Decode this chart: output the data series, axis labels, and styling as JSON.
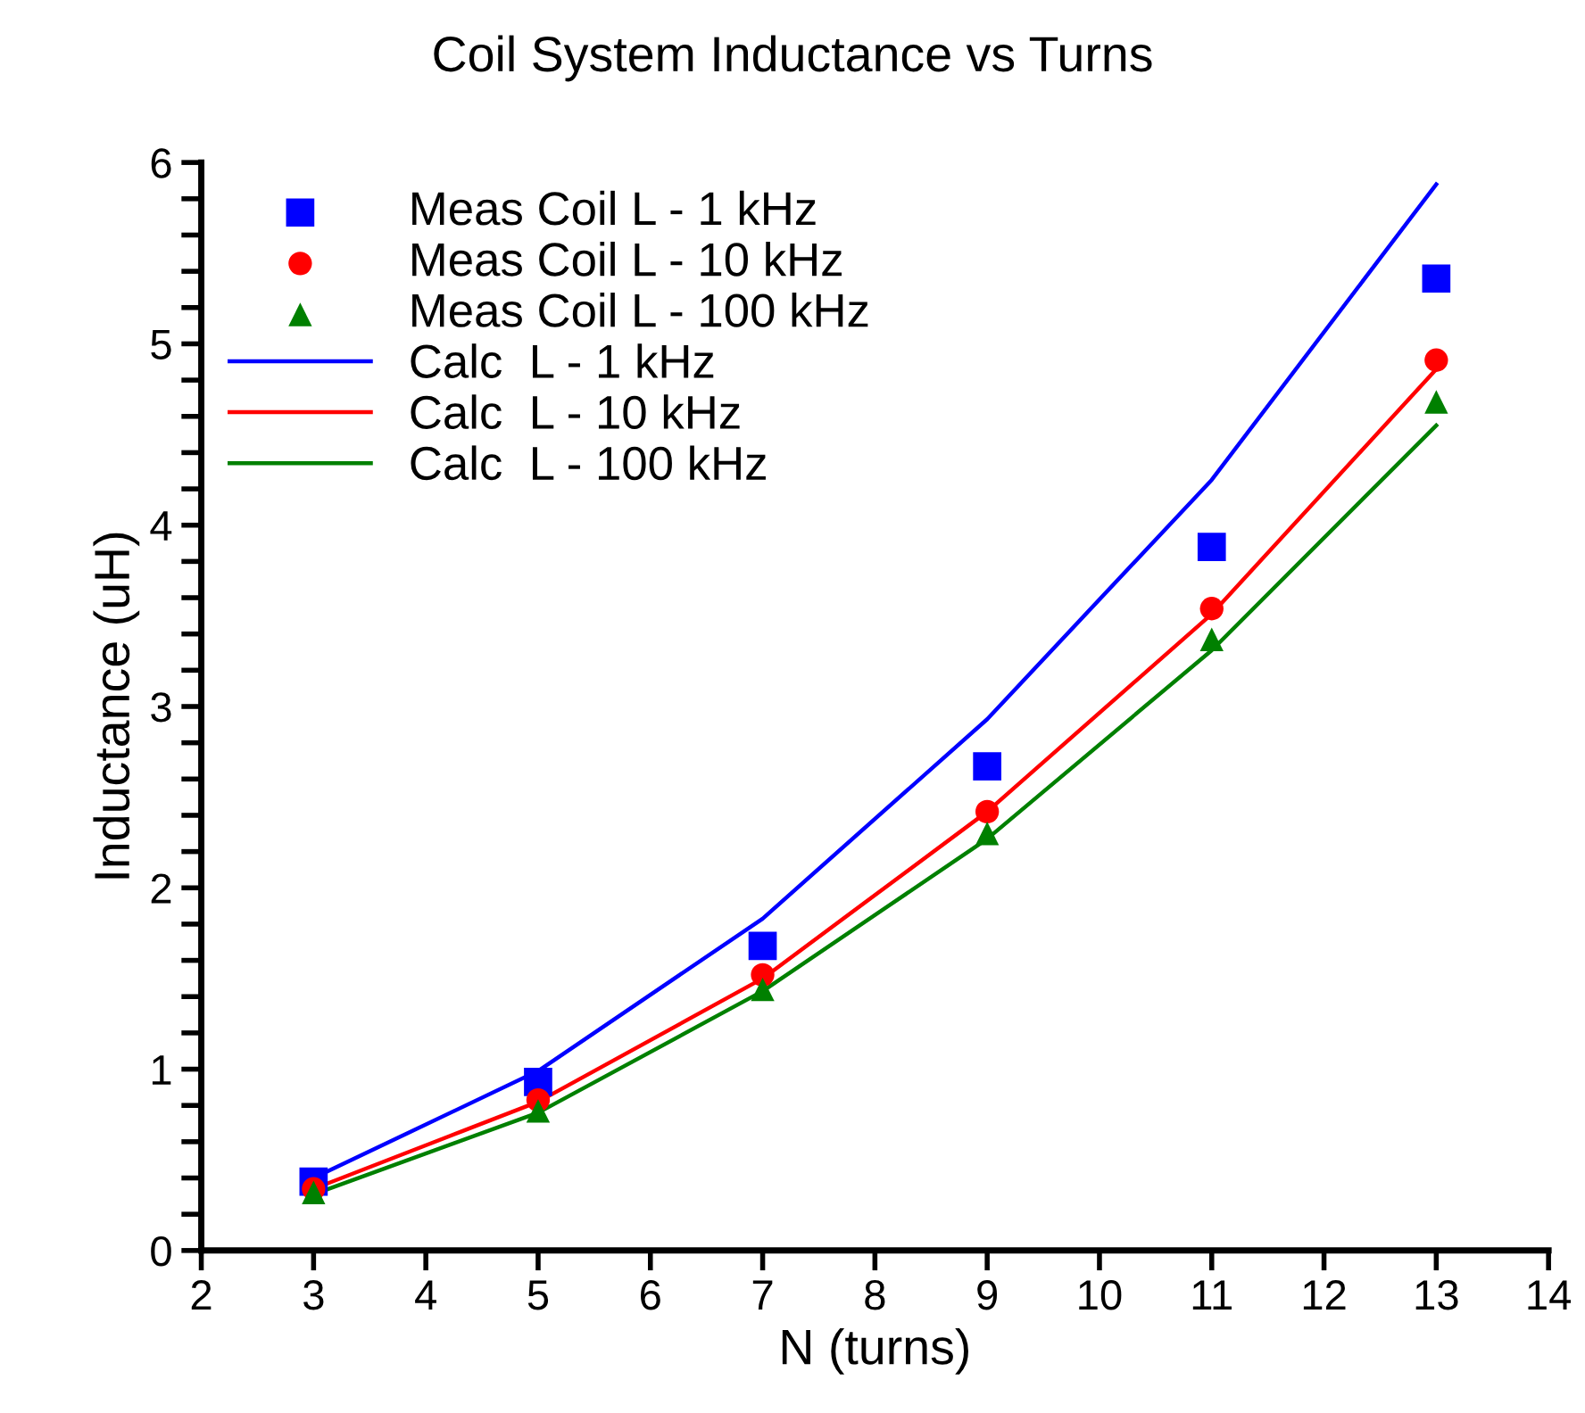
{
  "chart_data": {
    "type": "scatter",
    "title": "Coil System Inductance vs Turns",
    "xlabel": "N (turns)",
    "ylabel": "Inductance (uH)",
    "x": [
      3,
      5,
      7,
      9,
      11,
      13
    ],
    "series": [
      {
        "name": "Meas Coil L - 1 kHz",
        "marker": "square",
        "color": "#0000ff",
        "values": [
          0.38,
          0.93,
          1.68,
          2.67,
          3.88,
          5.36
        ]
      },
      {
        "name": "Meas Coil L - 10 kHz",
        "marker": "circle",
        "color": "#ff0000",
        "values": [
          0.34,
          0.83,
          1.52,
          2.42,
          3.54,
          4.91
        ]
      },
      {
        "name": "Meas Coil L - 100 kHz",
        "marker": "triangle",
        "color": "#008000",
        "values": [
          0.32,
          0.77,
          1.44,
          2.3,
          3.37,
          4.68
        ]
      },
      {
        "name": "Calc  L - 1 kHz",
        "type": "line",
        "marker": "none",
        "color": "#0000ff",
        "values": [
          0.4,
          0.99,
          1.83,
          2.93,
          4.25,
          5.88
        ]
      },
      {
        "name": "Calc  L - 10 kHz",
        "type": "line",
        "marker": "none",
        "color": "#ff0000",
        "values": [
          0.34,
          0.82,
          1.5,
          2.42,
          3.51,
          4.86
        ]
      },
      {
        "name": "Calc  L - 100 kHz",
        "type": "line",
        "marker": "none",
        "color": "#008000",
        "values": [
          0.31,
          0.76,
          1.43,
          2.27,
          3.31,
          4.55
        ]
      }
    ],
    "xlim": [
      2,
      14
    ],
    "xticks": [
      2,
      3,
      4,
      5,
      6,
      7,
      8,
      9,
      10,
      11,
      12,
      13,
      14
    ],
    "ylim": [
      0,
      6
    ],
    "yticks": [
      0,
      {
        "value": 0.2,
        "label": null
      },
      {
        "value": 0.4,
        "label": null
      },
      {
        "value": 0.6,
        "label": null
      },
      {
        "value": 0.8,
        "label": null
      },
      1,
      {
        "value": 1.2,
        "label": null
      },
      {
        "value": 1.4,
        "label": null
      },
      {
        "value": 1.6,
        "label": null
      },
      {
        "value": 1.8,
        "label": null
      },
      2,
      {
        "value": 2.2,
        "label": null
      },
      {
        "value": 2.4,
        "label": null
      },
      {
        "value": 2.6,
        "label": null
      },
      {
        "value": 2.8,
        "label": null
      },
      3,
      {
        "value": 3.2,
        "label": null
      },
      {
        "value": 3.4,
        "label": null
      },
      {
        "value": 3.6,
        "label": null
      },
      {
        "value": 3.8,
        "label": null
      },
      4,
      {
        "value": 4.2,
        "label": null
      },
      {
        "value": 4.4,
        "label": null
      },
      {
        "value": 4.6,
        "label": null
      },
      {
        "value": 4.8,
        "label": null
      },
      5,
      {
        "value": 5.2,
        "label": null
      },
      {
        "value": 5.4,
        "label": null
      },
      {
        "value": 5.6,
        "label": null
      },
      {
        "value": 5.8,
        "label": null
      },
      6
    ],
    "grid": false,
    "legend": "top left",
    "line_style": "solid"
  }
}
